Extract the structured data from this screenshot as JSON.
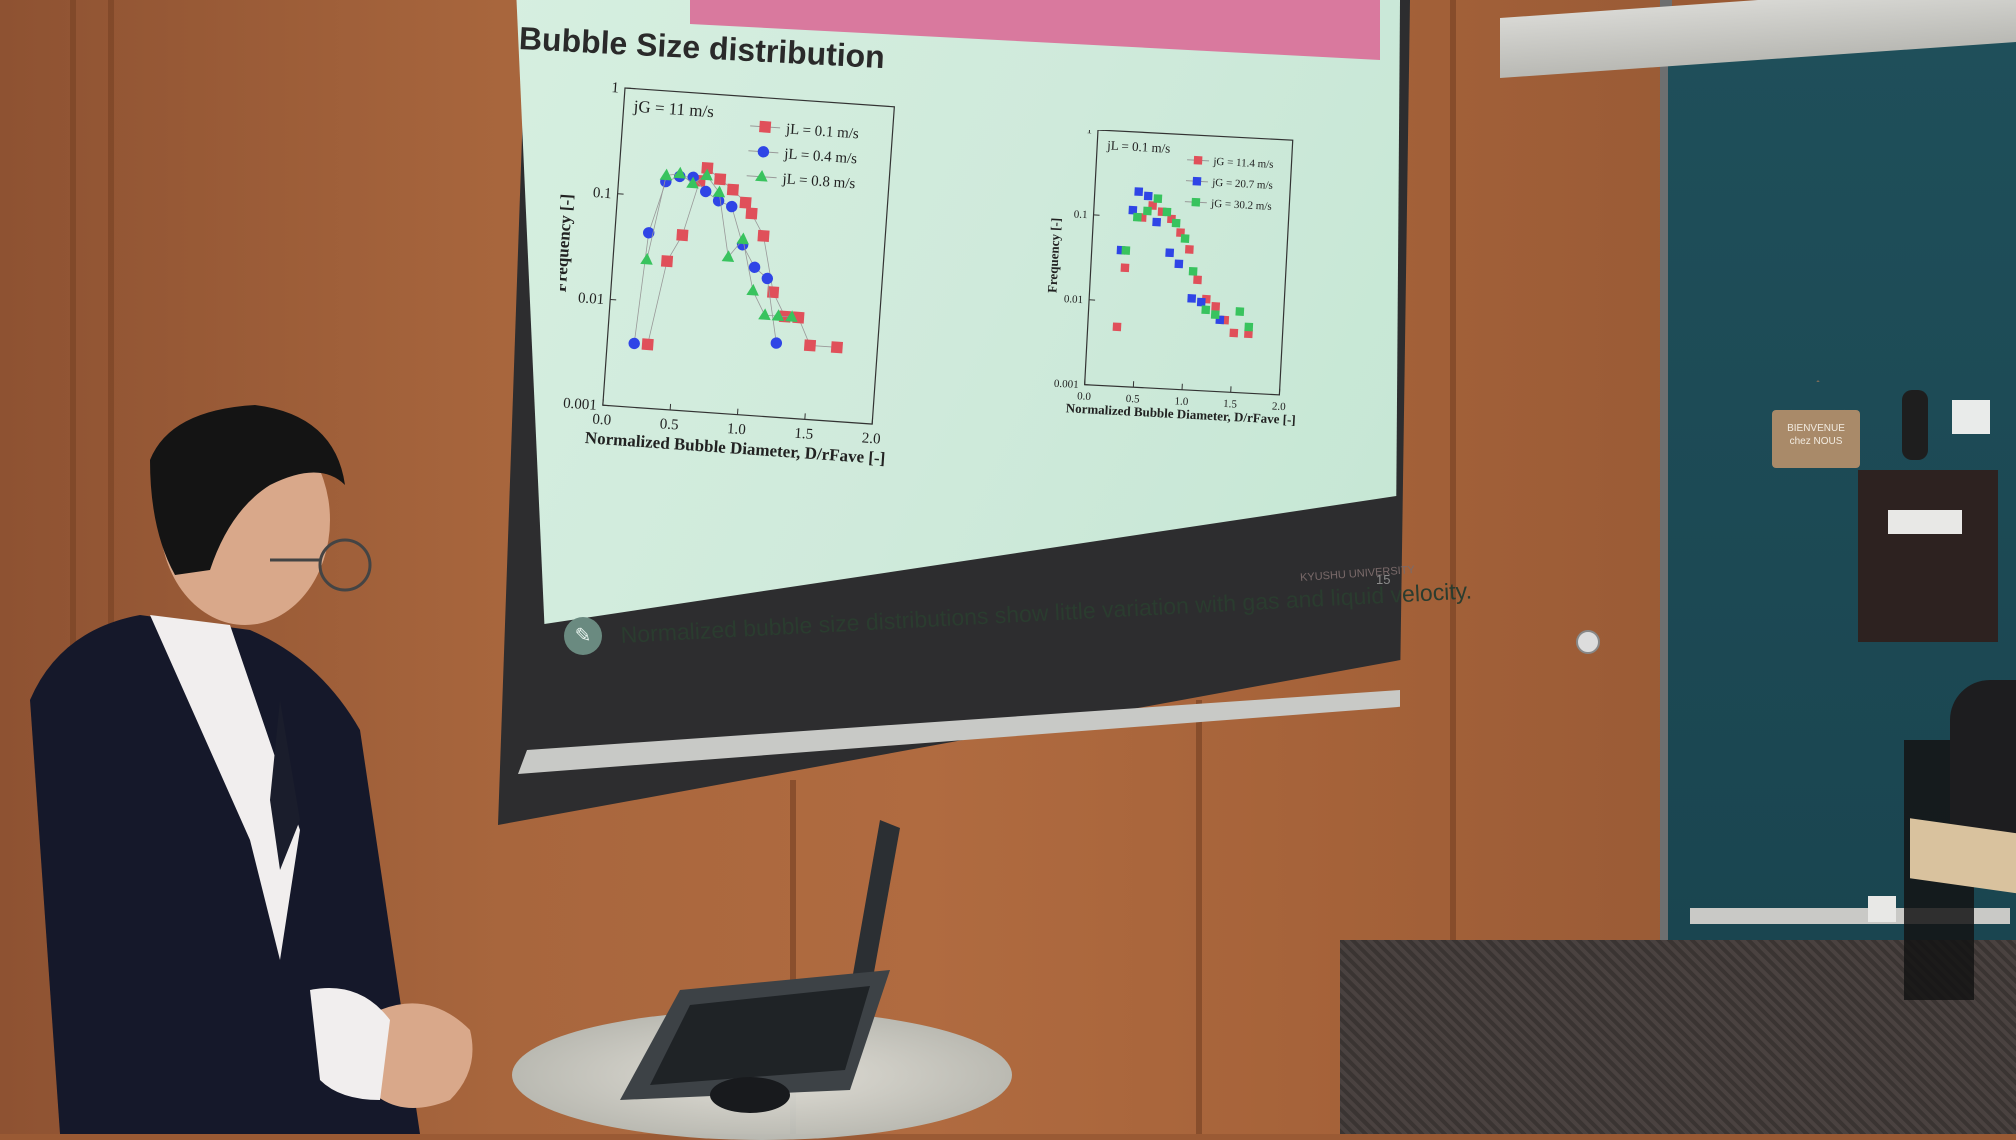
{
  "slide": {
    "title": "Bubble Size distribution",
    "caption": "Normalized bubble size distributions show little variation with gas and liquid velocity.",
    "university": "KYUSHU UNIVERSITY",
    "page_number": "15"
  },
  "sign": {
    "line1": "BIENVENUE",
    "line2": "chez NOUS"
  },
  "colors": {
    "series_red": "#e0505a",
    "series_blue": "#2f45e6",
    "series_green": "#38c35e",
    "pink_bar": "#d9799e"
  },
  "chart_data": [
    {
      "type": "line",
      "annotation": "jG = 11 m/s",
      "xlabel": "Normalized Bubble Diameter, D/rFave [-]",
      "ylabel": "Frequency [-]",
      "xlim": [
        0.0,
        2.0
      ],
      "ylim": [
        0.001,
        1
      ],
      "y_scale": "log",
      "x_ticks": [
        "0.0",
        "0.5",
        "1.0",
        "1.5",
        "2.0"
      ],
      "y_ticks": [
        "0.001",
        "0.01",
        "0.1",
        "1"
      ],
      "legend_position": "top-right",
      "series": [
        {
          "name": "jL = 0.1 m/s",
          "marker": "square",
          "color": "#e0505a",
          "points": [
            [
              0.3,
              0.004
            ],
            [
              0.4,
              0.025
            ],
            [
              0.5,
              0.045
            ],
            [
              0.6,
              0.15
            ],
            [
              0.65,
              0.2
            ],
            [
              0.75,
              0.16
            ],
            [
              0.85,
              0.13
            ],
            [
              0.95,
              0.1
            ],
            [
              1.0,
              0.08
            ],
            [
              1.1,
              0.05
            ],
            [
              1.2,
              0.015
            ],
            [
              1.3,
              0.009
            ],
            [
              1.4,
              0.009
            ],
            [
              1.5,
              0.005
            ],
            [
              1.7,
              0.005
            ]
          ]
        },
        {
          "name": "jL = 0.4 m/s",
          "marker": "circle",
          "color": "#2f45e6",
          "points": [
            [
              0.2,
              0.004
            ],
            [
              0.25,
              0.045
            ],
            [
              0.35,
              0.14
            ],
            [
              0.45,
              0.16
            ],
            [
              0.55,
              0.16
            ],
            [
              0.65,
              0.12
            ],
            [
              0.75,
              0.1
            ],
            [
              0.85,
              0.09
            ],
            [
              0.95,
              0.04
            ],
            [
              1.05,
              0.025
            ],
            [
              1.15,
              0.02
            ],
            [
              1.25,
              0.005
            ]
          ]
        },
        {
          "name": "jL = 0.8 m/s",
          "marker": "triangle",
          "color": "#38c35e",
          "points": [
            [
              0.25,
              0.025
            ],
            [
              0.35,
              0.16
            ],
            [
              0.45,
              0.17
            ],
            [
              0.55,
              0.14
            ],
            [
              0.65,
              0.17
            ],
            [
              0.75,
              0.12
            ],
            [
              0.85,
              0.03
            ],
            [
              0.95,
              0.045
            ],
            [
              1.05,
              0.015
            ],
            [
              1.15,
              0.009
            ],
            [
              1.25,
              0.009
            ],
            [
              1.35,
              0.009
            ]
          ]
        }
      ]
    },
    {
      "type": "scatter",
      "annotation": "jL = 0.1 m/s",
      "xlabel": "Normalized Bubble Diameter, D/rFave [-]",
      "ylabel": "Frequency [-]",
      "xlim": [
        0.0,
        2.0
      ],
      "ylim": [
        0.001,
        1
      ],
      "y_scale": "log",
      "x_ticks": [
        "0.0",
        "0.5",
        "1.0",
        "1.5",
        "2.0"
      ],
      "y_ticks": [
        "0.001",
        "0.01",
        "0.1",
        "1"
      ],
      "legend_position": "top-right",
      "series": [
        {
          "name": "jG = 11.4 m/s",
          "marker": "square",
          "color": "#e0505a",
          "points": [
            [
              0.3,
              0.005
            ],
            [
              0.35,
              0.025
            ],
            [
              0.5,
              0.1
            ],
            [
              0.6,
              0.14
            ],
            [
              0.7,
              0.12
            ],
            [
              0.8,
              0.1
            ],
            [
              0.9,
              0.07
            ],
            [
              1.0,
              0.045
            ],
            [
              1.1,
              0.02
            ],
            [
              1.2,
              0.012
            ],
            [
              1.3,
              0.01
            ],
            [
              1.4,
              0.007
            ],
            [
              1.5,
              0.005
            ],
            [
              1.65,
              0.005
            ]
          ]
        },
        {
          "name": "jG = 20.7 m/s",
          "marker": "square",
          "color": "#2f45e6",
          "points": [
            [
              0.3,
              0.04
            ],
            [
              0.4,
              0.12
            ],
            [
              0.45,
              0.2
            ],
            [
              0.55,
              0.18
            ],
            [
              0.65,
              0.09
            ],
            [
              0.8,
              0.04
            ],
            [
              0.9,
              0.03
            ],
            [
              1.05,
              0.012
            ],
            [
              1.15,
              0.011
            ],
            [
              1.35,
              0.007
            ]
          ]
        },
        {
          "name": "jG = 30.2 m/s",
          "marker": "square",
          "color": "#38c35e",
          "points": [
            [
              0.35,
              0.04
            ],
            [
              0.45,
              0.1
            ],
            [
              0.55,
              0.12
            ],
            [
              0.65,
              0.17
            ],
            [
              0.75,
              0.12
            ],
            [
              0.85,
              0.09
            ],
            [
              0.95,
              0.06
            ],
            [
              1.05,
              0.025
            ],
            [
              1.2,
              0.009
            ],
            [
              1.3,
              0.008
            ],
            [
              1.55,
              0.009
            ],
            [
              1.65,
              0.006
            ]
          ]
        }
      ]
    }
  ]
}
